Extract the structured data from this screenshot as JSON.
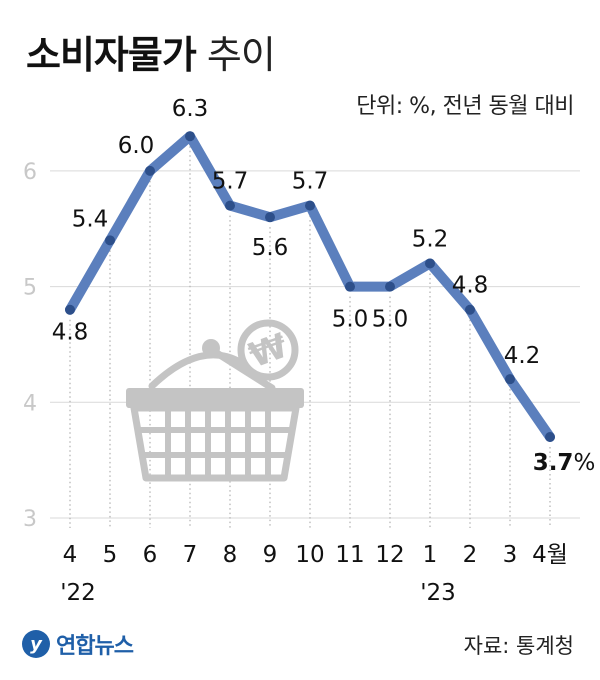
{
  "header": {
    "title_main": "소비자물가",
    "title_sub": "추이",
    "unit": "단위: %, 전년 동월 대비"
  },
  "footer": {
    "logo_text": "연합뉴스",
    "source": "자료: 통계청"
  },
  "colors": {
    "line": "#5b7fbd",
    "marker": "#2d4f8a",
    "grid": "#d9d9d9",
    "axis_text": "#c8c8c8",
    "basket": "#c4c4c4"
  },
  "chart_data": {
    "type": "line",
    "categories": [
      "4",
      "5",
      "6",
      "7",
      "8",
      "9",
      "10",
      "11",
      "12",
      "1",
      "2",
      "3",
      "4월"
    ],
    "year_labels": [
      {
        "index": 0,
        "label": "'22"
      },
      {
        "index": 9,
        "label": "'23"
      }
    ],
    "series": [
      {
        "values": [
          4.8,
          5.4,
          6.0,
          6.3,
          5.7,
          5.6,
          5.7,
          5.0,
          5.0,
          5.2,
          4.8,
          4.2,
          3.7
        ]
      }
    ],
    "data_labels": [
      "4.8",
      "5.4",
      "6.0",
      "6.3",
      "5.7",
      "5.6",
      "5.7",
      "5.0",
      "5.0",
      "5.2",
      "4.8",
      "4.2",
      "3.7"
    ],
    "last_label_unit": "%",
    "yticks": [
      3,
      4,
      5,
      6
    ],
    "ylim": [
      3,
      6.3
    ],
    "grid": true,
    "title": "소비자물가 추이",
    "xlabel": "",
    "ylabel": ""
  }
}
